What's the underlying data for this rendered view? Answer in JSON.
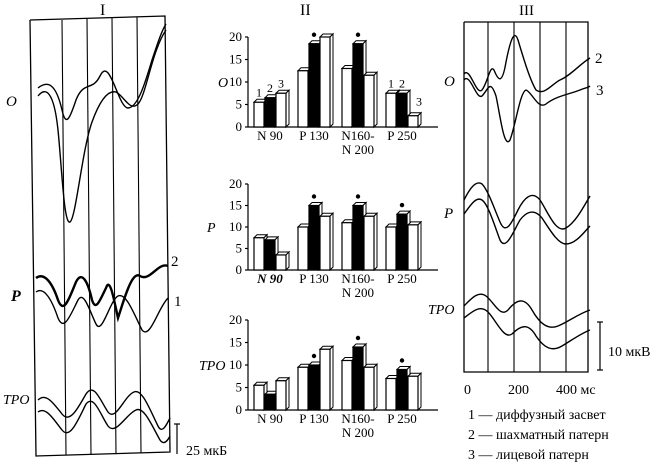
{
  "panels": {
    "I": "I",
    "II": "II",
    "III": "III"
  },
  "panel1": {
    "row_labels": {
      "O": "O",
      "P": "P",
      "TPO": "TPO"
    },
    "curve_labels": [
      "2",
      "1"
    ],
    "scale_bar": "25 мкБ"
  },
  "panel3": {
    "row_labels": {
      "O": "O",
      "P": "P",
      "TPO": "TPO"
    },
    "curve_labels": [
      "2",
      "3"
    ],
    "scale_bar": "10 мкВ",
    "time_axis": {
      "ticks": [
        "0",
        "200",
        "400 мс"
      ]
    }
  },
  "legend": [
    "1 — диффузный засвет",
    "2 — шахматный патерн",
    "3 — лицевой патерн"
  ],
  "chart_data": [
    {
      "type": "bar",
      "ylabel": "O",
      "ylim": [
        0,
        20
      ],
      "yticks": [
        "0",
        "5",
        "10",
        "15",
        "20"
      ],
      "categories": [
        "N 90",
        "P 130",
        "N160-\nN 200",
        "P 250"
      ],
      "series": [
        {
          "name": "1",
          "color": "#ffffff",
          "values": [
            5.5,
            12.5,
            13,
            7.5
          ]
        },
        {
          "name": "2",
          "color": "#000000",
          "values": [
            6.5,
            18.5,
            18.5,
            7.5
          ]
        },
        {
          "name": "3",
          "color": "#ffffff",
          "values": [
            7.5,
            20,
            11.5,
            2.5
          ]
        }
      ],
      "series_numbers_over": [
        "N 90",
        "P 250"
      ],
      "stars": [
        "P 130",
        "N160-\nN 200"
      ]
    },
    {
      "type": "bar",
      "ylabel": "P",
      "ylim": [
        0,
        20
      ],
      "yticks": [
        "0",
        "5",
        "10",
        "15",
        "20"
      ],
      "categories": [
        "N 90",
        "P 130",
        "N160-\nN 200",
        "P 250"
      ],
      "series": [
        {
          "name": "1",
          "color": "#ffffff",
          "values": [
            7.5,
            10,
            11,
            10
          ]
        },
        {
          "name": "2",
          "color": "#000000",
          "values": [
            7,
            15,
            15,
            13
          ]
        },
        {
          "name": "3",
          "color": "#ffffff",
          "values": [
            3.5,
            12.5,
            12.5,
            10.5
          ]
        }
      ],
      "stars": [
        "P 130",
        "N160-\nN 200",
        "P 250"
      ]
    },
    {
      "type": "bar",
      "ylabel": "TPO",
      "ylim": [
        0,
        20
      ],
      "yticks": [
        "0",
        "5",
        "10",
        "15",
        "20"
      ],
      "categories": [
        "N 90",
        "P 130",
        "N160-\nN 200",
        "P 250"
      ],
      "series": [
        {
          "name": "1",
          "color": "#ffffff",
          "values": [
            5.5,
            9.5,
            11,
            7
          ]
        },
        {
          "name": "2",
          "color": "#000000",
          "values": [
            3.5,
            10,
            14,
            9
          ]
        },
        {
          "name": "3",
          "color": "#ffffff",
          "values": [
            6.5,
            13.5,
            9.5,
            7.5
          ]
        }
      ],
      "stars": [
        "P 130",
        "N160-\nN 200",
        "P 250"
      ]
    }
  ]
}
